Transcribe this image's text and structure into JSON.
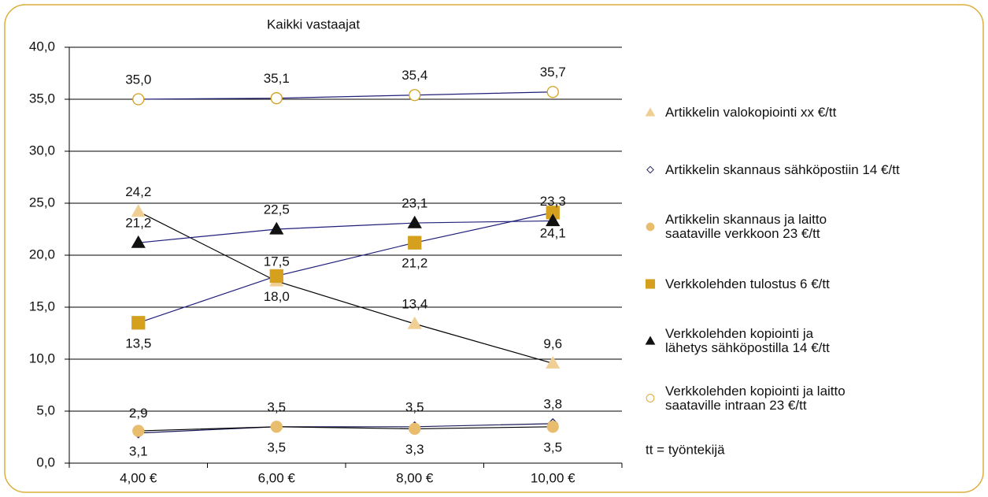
{
  "chart_data": {
    "type": "line",
    "title": "Kaikki vastaajat",
    "categories": [
      "4,00 €",
      "6,00 €",
      "8,00 €",
      "10,00 €"
    ],
    "ylim": [
      0,
      40
    ],
    "yticks": [
      {
        "value": 0,
        "label": "0,0"
      },
      {
        "value": 5,
        "label": "5,0"
      },
      {
        "value": 10,
        "label": "10,0"
      },
      {
        "value": 15,
        "label": "15,0"
      },
      {
        "value": 20,
        "label": "20,0"
      },
      {
        "value": 25,
        "label": "25,0"
      },
      {
        "value": 30,
        "label": "30,0"
      },
      {
        "value": 35,
        "label": "35,0"
      },
      {
        "value": 40,
        "label": "40,0"
      }
    ],
    "grid": true,
    "legend": "right",
    "note": "tt = työntekijä",
    "series": [
      {
        "name": "Artikkelin valokopiointi xx €/tt",
        "marker": "triangle",
        "color": "#f0cf94",
        "stroke": "#f0cf94",
        "line_color": "#000000",
        "label_position": "above",
        "values": [
          24.2,
          17.5,
          13.4,
          9.6
        ],
        "value_labels": [
          "24,2",
          "17,5",
          "13,4",
          "9,6"
        ]
      },
      {
        "name": "Artikkelin skannaus sähköpostiin 14 €/tt",
        "marker": "diamond",
        "color": "#ffffff",
        "stroke": "#1a1a5a",
        "line_color": "#1a1a5a",
        "label_position": "above",
        "values": [
          2.9,
          3.5,
          3.5,
          3.8
        ],
        "value_labels": [
          "2,9",
          "3,5",
          "3,5",
          "3,8"
        ]
      },
      {
        "name": "Artikkelin skannaus ja laitto saataville verkkoon 23 €/tt",
        "marker": "circle",
        "color": "#e9bd6e",
        "stroke": "#e9bd6e",
        "line_color": "#000000",
        "label_position": "below",
        "values": [
          3.1,
          3.5,
          3.3,
          3.5
        ],
        "value_labels": [
          "3,1",
          "3,5",
          "3,3",
          "3,5"
        ]
      },
      {
        "name": "Verkkolehden tulostus 6 €/tt",
        "marker": "square",
        "color": "#d4a01e",
        "stroke": "#d4a01e",
        "line_color": "#1f1f7a",
        "label_position": "below",
        "values": [
          13.5,
          18.0,
          21.2,
          24.1
        ],
        "value_labels": [
          "13,5",
          "18,0",
          "21,2",
          "24,1"
        ]
      },
      {
        "name": "Verkkolehden kopiointi ja lähetys sähköpostilla 14 €/tt",
        "marker": "triangle",
        "color": "#111111",
        "stroke": "#111111",
        "line_color": "#1f1f7a",
        "label_position": "above",
        "values": [
          21.2,
          22.5,
          23.1,
          23.3
        ],
        "value_labels": [
          "21,2",
          "22,5",
          "23,1",
          "23,3"
        ]
      },
      {
        "name": "Verkkolehden kopiointi ja laitto saataville intraan 23 €/tt",
        "marker": "circle",
        "color": "#ffffff",
        "stroke": "#d4a01e",
        "line_color": "#1f1f7a",
        "label_position": "above",
        "values": [
          35.0,
          35.1,
          35.4,
          35.7
        ],
        "value_labels": [
          "35,0",
          "35,1",
          "35,4",
          "35,7"
        ]
      }
    ]
  }
}
